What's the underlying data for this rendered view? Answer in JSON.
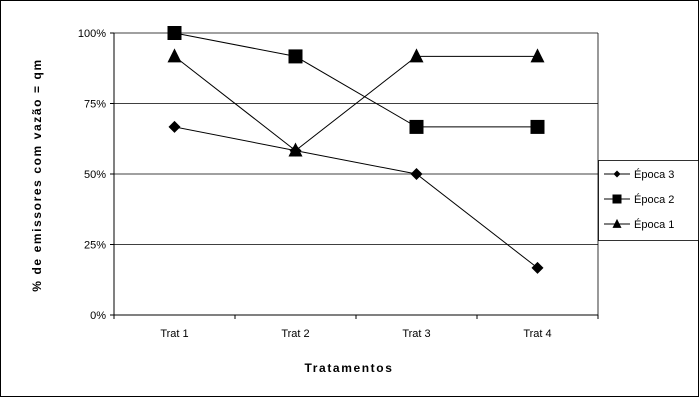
{
  "chart_data": {
    "type": "line",
    "categories": [
      "Trat 1",
      "Trat 2",
      "Trat 3",
      "Trat 4"
    ],
    "y_ticks": [
      "0%",
      "25%",
      "50%",
      "75%",
      "100%"
    ],
    "ylim": [
      0,
      100
    ],
    "xlabel": "Tratamentos",
    "ylabel": "% de emissores com vazão = qm",
    "legend_position": "right",
    "grid": "horizontal",
    "series": [
      {
        "name": "Época 3",
        "marker": "diamond",
        "values": [
          66.7,
          58.3,
          50.0,
          16.7
        ]
      },
      {
        "name": "Época 2",
        "marker": "square",
        "values": [
          100.0,
          91.7,
          66.7,
          66.7
        ]
      },
      {
        "name": "Época 1",
        "marker": "triangle",
        "values": [
          91.7,
          58.3,
          91.7,
          91.7
        ]
      }
    ],
    "colors": {
      "line": "#000000",
      "grid": "#000000",
      "background": "#ffffff"
    }
  }
}
